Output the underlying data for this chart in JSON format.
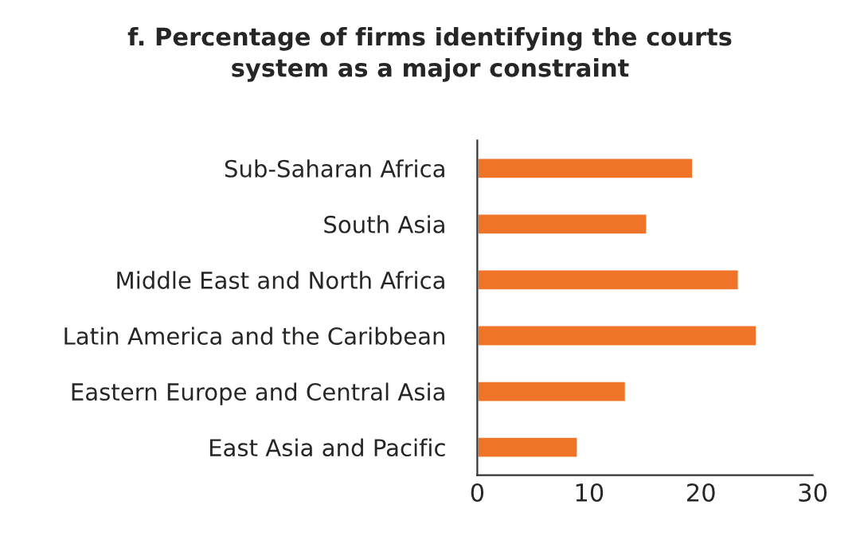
{
  "chart_data": {
    "type": "bar",
    "orientation": "horizontal",
    "title": "f. Percentage of firms identifying the courts\nsystem as a major constraint",
    "categories": [
      "Sub-Saharan Africa",
      "South Asia",
      "Middle East and North Africa",
      "Latin America and the Caribbean",
      "Eastern Europe and Central Asia",
      "East Asia and Pacific"
    ],
    "values": [
      19.3,
      15.2,
      23.4,
      25.0,
      13.3,
      9.0
    ],
    "color": "#f07427",
    "xlim": [
      0,
      30
    ],
    "xticks": [
      0,
      10,
      20,
      30
    ],
    "grid": false,
    "legend": false
  }
}
